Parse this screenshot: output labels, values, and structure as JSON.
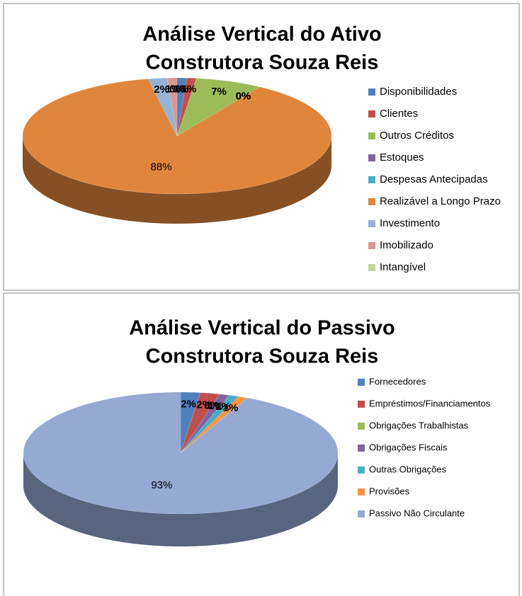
{
  "chart_data": [
    {
      "type": "pie",
      "title": "Análise Vertical do Ativo",
      "subtitle": "Construtora Souza Reis",
      "categories": [
        "Disponibilidades",
        "Clientes",
        "Outros Créditos",
        "Estoques",
        "Despesas Antecipadas",
        "Realizável a Longo Prazo",
        "Investimento",
        "Imobilizado",
        "Intangível"
      ],
      "values": [
        1,
        1,
        7,
        0,
        0,
        88,
        2,
        1,
        0
      ],
      "value_labels": [
        "1%",
        "1%",
        "7%",
        "0%",
        "0%",
        "88%",
        "2%",
        "1%",
        "0%"
      ],
      "colors": [
        "#4f81bd",
        "#c0504d",
        "#9bbb59",
        "#8064a2",
        "#4bacc6",
        "#e0863c",
        "#95b3d7",
        "#d99694",
        "#c3d69b"
      ],
      "legend": "right"
    },
    {
      "type": "pie",
      "title": "Análise Vertical do Passivo",
      "subtitle": "Construtora Souza Reis",
      "categories": [
        "Fornecedores",
        "Empréstimos/Financiamentos",
        "Obrigações Trabalhistas",
        "Obrigações Fiscais",
        "Outras Obrigações",
        "Provisões",
        "Passivo Não Circulante"
      ],
      "values": [
        2,
        2,
        0,
        1,
        1,
        1,
        93
      ],
      "value_labels": [
        "2%",
        "2%",
        "0%",
        "1%",
        "1%",
        "1%",
        "93%"
      ],
      "colors": [
        "#4f81bd",
        "#c0504d",
        "#9bbb59",
        "#8064a2",
        "#4bacc6",
        "#f79646",
        "#95a9d3"
      ],
      "legend": "right"
    }
  ]
}
